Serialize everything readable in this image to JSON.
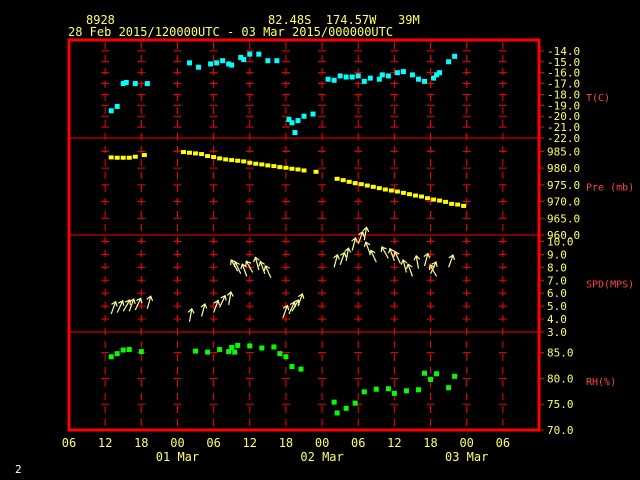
{
  "header": {
    "station_id": "8928",
    "location": "82.48S  174.57W   39M",
    "time_range": "28 Feb 2015/120000UTC - 03 Mar 2015/000000UTC"
  },
  "footer": {
    "page": "2"
  },
  "colors": {
    "frame": "#ff0000",
    "grid": "#ff0000",
    "header": "#ffff66",
    "axis_text": "#ffff66",
    "temperature": "#00ffff",
    "pressure": "#ffff00",
    "wind": "#ffff99",
    "humidity": "#00ff00",
    "panel_label": "#ff4444"
  },
  "chart_data": {
    "type": "scatter",
    "x_unit": "hours since 28 Feb 2015 06 UTC",
    "x_range": [
      0,
      78
    ],
    "x_ticks": [
      {
        "h": 0,
        "label": "06"
      },
      {
        "h": 6,
        "label": "12"
      },
      {
        "h": 12,
        "label": "18"
      },
      {
        "h": 18,
        "label": "00"
      },
      {
        "h": 24,
        "label": "06"
      },
      {
        "h": 30,
        "label": "12"
      },
      {
        "h": 36,
        "label": "18"
      },
      {
        "h": 42,
        "label": "00"
      },
      {
        "h": 48,
        "label": "06"
      },
      {
        "h": 54,
        "label": "12"
      },
      {
        "h": 60,
        "label": "18"
      },
      {
        "h": 66,
        "label": "00"
      },
      {
        "h": 72,
        "label": "06"
      }
    ],
    "date_labels": [
      {
        "h": 18,
        "label": "01 Mar"
      },
      {
        "h": 42,
        "label": "02 Mar"
      },
      {
        "h": 66,
        "label": "03 Mar"
      }
    ],
    "panels": [
      {
        "key": "temp",
        "label": "T(C)",
        "ylim": [
          -22,
          -13
        ],
        "ticks": [
          -14,
          -15,
          -16,
          -17,
          -18,
          -19,
          -20,
          -21,
          -22
        ],
        "tick_labels": [
          "-14.0",
          "-15.0",
          "-16.0",
          "-17.0",
          "-18.0",
          "-19.0",
          "-20.0",
          "-21.0",
          "-22.0"
        ],
        "x": [
          7,
          8,
          9,
          9.5,
          11,
          13,
          20,
          21.5,
          23.5,
          24.5,
          25.5,
          26.5,
          27,
          28.5,
          29,
          30,
          31.5,
          33,
          34.5,
          36.5,
          37,
          37.5,
          38,
          39,
          40.5,
          43,
          44,
          45,
          46,
          47,
          48,
          49,
          50,
          51.5,
          52,
          53,
          54.5,
          55.5,
          57,
          58,
          59,
          60.5,
          61,
          61.5,
          63,
          64
        ],
        "values": [
          -19.5,
          -19.1,
          -17.0,
          -16.9,
          -17.0,
          -17.0,
          -15.1,
          -15.5,
          -15.2,
          -15.1,
          -14.9,
          -15.2,
          -15.3,
          -14.6,
          -14.8,
          -14.3,
          -14.3,
          -14.9,
          -14.9,
          -20.3,
          -20.6,
          -21.5,
          -20.4,
          -20.0,
          -19.8,
          -16.6,
          -16.7,
          -16.3,
          -16.4,
          -16.4,
          -16.3,
          -16.8,
          -16.5,
          -16.6,
          -16.2,
          -16.3,
          -16.0,
          -15.9,
          -16.2,
          -16.6,
          -16.8,
          -16.5,
          -16.2,
          -16.0,
          -15.0,
          -14.5
        ]
      },
      {
        "key": "pres",
        "label": "Pre (mb)",
        "ylim": [
          960,
          989
        ],
        "ticks": [
          985,
          980,
          975,
          970,
          965,
          960
        ],
        "tick_labels": [
          "985.0",
          "980.0",
          "975.0",
          "970.0",
          "965.0",
          "960.0"
        ],
        "x": [
          7,
          8,
          9,
          10,
          11,
          12.5,
          19,
          20,
          21,
          22,
          23,
          24,
          25,
          26,
          27,
          28,
          29,
          30,
          31,
          32,
          33,
          34,
          35,
          36,
          37,
          38,
          39,
          41,
          44.5,
          45.5,
          46.5,
          47.5,
          48.5,
          49.5,
          50.5,
          51.5,
          52.5,
          53.5,
          54.5,
          55.5,
          56.5,
          57.5,
          58.5,
          59.5,
          60.5,
          61.5,
          62.5,
          63.5,
          64.5,
          65.5
        ],
        "values": [
          983.2,
          983.1,
          983.1,
          983.1,
          983.4,
          983.9,
          984.8,
          984.6,
          984.4,
          984.2,
          983.6,
          983.3,
          982.9,
          982.6,
          982.4,
          982.2,
          982.0,
          981.6,
          981.3,
          981.1,
          980.8,
          980.6,
          980.3,
          980.1,
          979.8,
          979.6,
          979.3,
          978.9,
          976.8,
          976.4,
          975.9,
          975.5,
          975.2,
          974.8,
          974.4,
          974.0,
          973.6,
          973.3,
          973.0,
          972.6,
          972.2,
          971.8,
          971.5,
          971.0,
          970.6,
          970.3,
          969.9,
          969.3,
          969.1,
          968.7
        ]
      },
      {
        "key": "spd",
        "label": "SPD(MPS)",
        "ylim": [
          3,
          10.5
        ],
        "ticks": [
          10,
          9,
          8,
          7,
          6,
          5,
          4,
          3
        ],
        "tick_labels": [
          "10.0",
          "9.0",
          "8.0",
          "7.0",
          "6.0",
          "5.0",
          "4.0",
          "3.0"
        ],
        "x": [
          7,
          8,
          9,
          10,
          11,
          13,
          20,
          22,
          24,
          25,
          26.5,
          28,
          28.5,
          29.5,
          30.5,
          31.5,
          32.5,
          33.5,
          35.5,
          36.5,
          37,
          38,
          44,
          45,
          46,
          47,
          48,
          49,
          50,
          51,
          53,
          54,
          55,
          56,
          57,
          58,
          59,
          60,
          61,
          63
        ],
        "values": [
          4.4,
          4.5,
          4.6,
          4.6,
          4.7,
          4.8,
          3.8,
          4.2,
          4.5,
          4.9,
          5.1,
          7.7,
          7.5,
          7.3,
          7.6,
          7.8,
          7.5,
          7.2,
          4.1,
          4.4,
          4.6,
          5.0,
          8.0,
          8.2,
          8.5,
          9.3,
          9.8,
          10.1,
          9.0,
          8.4,
          8.7,
          8.5,
          8.3,
          7.6,
          7.3,
          7.9,
          8.1,
          7.5,
          7.3,
          8.0
        ],
        "dir_deg": [
          20,
          25,
          30,
          20,
          25,
          15,
          10,
          15,
          20,
          25,
          10,
          330,
          335,
          340,
          330,
          345,
          340,
          335,
          20,
          25,
          30,
          20,
          15,
          20,
          10,
          15,
          20,
          10,
          340,
          335,
          330,
          340,
          335,
          345,
          340,
          350,
          15,
          25,
          330,
          20
        ]
      },
      {
        "key": "rh",
        "label": "RH(%)",
        "ylim": [
          70,
          89
        ],
        "ticks": [
          85,
          80,
          75,
          70
        ],
        "tick_labels": [
          "85.0",
          "80.0",
          "75.0",
          "70.0"
        ],
        "x": [
          7,
          8,
          9,
          10,
          12,
          21,
          23,
          25,
          26.5,
          27,
          27.5,
          28,
          30,
          32,
          34,
          35,
          36,
          37,
          38.5,
          44,
          44.5,
          46,
          47.5,
          49,
          51,
          53,
          54,
          56,
          58,
          59,
          60,
          61,
          63,
          64
        ],
        "values": [
          84.2,
          84.8,
          85.5,
          85.6,
          85.2,
          85.3,
          85.1,
          85.6,
          85.2,
          86.0,
          85.1,
          86.4,
          86.3,
          85.9,
          86.1,
          84.8,
          84.2,
          82.3,
          81.8,
          75.4,
          73.3,
          74.2,
          75.2,
          77.4,
          77.9,
          78.0,
          77.1,
          77.6,
          77.8,
          81.0,
          79.8,
          80.9,
          78.2,
          80.4
        ]
      }
    ]
  }
}
